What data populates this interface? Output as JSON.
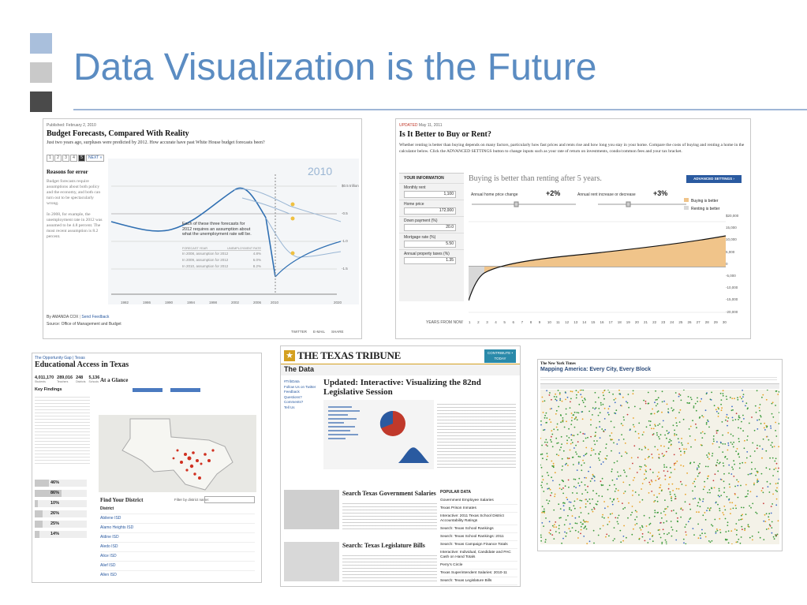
{
  "slide": {
    "title": "Data Visualization is the Future",
    "accent": "#5b8cc2"
  },
  "budget": {
    "published": "Published: February 2, 2010",
    "headline": "Budget Forecasts, Compared With Reality",
    "deck": "Just two years ago, surpluses were predicted by 2012. How accurate have past White House budget forecasts been?",
    "pager": [
      "1",
      "2",
      "3",
      "4",
      "5"
    ],
    "next_label": "NEXT »",
    "sidebar_heading": "Reasons for error",
    "sidebar_p1": "Budget forecasts require assumptions about both policy and the economy, and both can turn out to be spectacularly wrong.",
    "sidebar_p2": "In 2008, for example, the unemployment rate in 2012 was assumed to be 4.8 percent. The most recent assumption is 8.2 percent.",
    "year_badge": "2010",
    "y_ticks": [
      "$0.5 trillion",
      "-0.5",
      "-1.0",
      "-1.5"
    ],
    "x_ticks": [
      "1982",
      "1986",
      "1990",
      "1994",
      "1998",
      "2002",
      "2006",
      "2010",
      "2020"
    ],
    "callout": "Each of these three forecasts for 2012 requires an assumption about what the unemployment rate will be.",
    "table_head": [
      "FORECAST YEAR",
      "UNEMPLOYMENT RATE"
    ],
    "table_rows": [
      [
        "In 2008, assumption for 2012",
        "4.8%"
      ],
      [
        "In 2009, assumption for 2012",
        "6.0%"
      ],
      [
        "In 2010, assumption for 2012",
        "8.2%"
      ]
    ],
    "byline": "By AMANDA COX",
    "feedback": "Send Feedback",
    "source": "Source: Office of Management and Budget",
    "share": [
      "TWITTER",
      "E-MAIL",
      "SHARE"
    ]
  },
  "rent": {
    "updated": "UPDATED",
    "date": "May 11, 2011",
    "headline": "Is It Better to Buy or Rent?",
    "deck": "Whether renting is better than buying depends on many factors, particularly how fast prices and rents rise and how long you stay in your home. Compare the costs of buying and renting a home in the calculator below. Click the ADVANCED SETTINGS button to change inputs such as your rate of return on investments, condo/common fees and your tax bracket.",
    "your_info": "YOUR INFORMATION",
    "fields": [
      {
        "label": "Monthly rent",
        "value": "1,100"
      },
      {
        "label": "Home price",
        "value": "172,000"
      },
      {
        "label": "Down payment (%)",
        "value": "20.0"
      },
      {
        "label": "Mortgage rate (%)",
        "value": "5.50"
      },
      {
        "label": "Annual property taxes (%)",
        "value": "1.35"
      }
    ],
    "chart_title": "Buying is better than renting after 5 years.",
    "advanced_button": "ADVANCED SETTINGS ›",
    "slider1_label": "Annual home price change",
    "slider1_value": "+2%",
    "slider2_label": "Annual rent increase or decrease",
    "slider2_value": "+3%",
    "legend": [
      "Buying is better",
      "Renting is better"
    ],
    "y_ticks": [
      "$20,000",
      "15,000",
      "10,000",
      "5,000",
      "0",
      "-5,000",
      "-10,000",
      "-15,000",
      "-20,000"
    ],
    "x_label": "YEARS FROM NOW",
    "colors": {
      "buy": "#f0c48a",
      "rent": "#d8d8d8",
      "button": "#2a5aa0"
    }
  },
  "edu": {
    "kicker": "The Opportunity Gap | Texas",
    "headline": "Educational Access in Texas",
    "stats": [
      {
        "value": "4,011,170",
        "label": "Students"
      },
      {
        "value": "289,016",
        "label": "Teachers"
      },
      {
        "value": "248",
        "label": "Districts"
      },
      {
        "value": "5,136",
        "label": "Schools"
      }
    ],
    "at_a_glance": "At a Glance",
    "key_findings": "Key Findings",
    "percent_bars": [
      "46%",
      "86%",
      "10%",
      "26%",
      "25%",
      "14%"
    ],
    "find_district": "Find Your District",
    "filter_label": "Filter by district name:",
    "district_col": "District",
    "districts": [
      "Abilene ISD",
      "Alamo Heights ISD",
      "Aldine ISD",
      "Aledo ISD",
      "Alice ISD",
      "Alief ISD",
      "Allen ISD"
    ]
  },
  "tribune": {
    "logo": "THE TEXAS TRIBUNE",
    "contribute": "CONTRIBUTE • TODAY",
    "section": "The Data",
    "headline": "Updated: Interactive: Visualizing the 82nd Legislative Session",
    "sidebar_links": [
      "#TribData",
      "Follow Us on Twitter",
      "Feedback",
      "Questions? Comments?",
      "Tell Us"
    ],
    "story2": "Search Texas Government Salaries",
    "story3": "Search: Texas Legislature Bills",
    "popular_heading": "POPULAR DATA",
    "popular": [
      "Government Employee Salaries",
      "Texas Prison Inmates",
      "Interactive: 2011 Texas School District Accountability Ratings",
      "Search: Texas School Rankings",
      "Search: Texas School Rankings: 2011",
      "Search: Texas Campaign Finance Totals",
      "Interactive: Individual, Candidate and PAC Cash on Hand Totals",
      "Perry's Circle",
      "Texas Superintendent Salaries: 2010-11",
      "Search: Texas Legislature Bills"
    ],
    "brand": "#d4a020"
  },
  "census": {
    "masthead": "The New York Times",
    "headline": "Mapping America: Every City, Every Block",
    "colors": {
      "white": "#3a9a3a",
      "black": "#3a6ac8",
      "hispanic": "#e8a020",
      "asian": "#c83a3a",
      "map_bg": "#f4f2e8"
    }
  }
}
